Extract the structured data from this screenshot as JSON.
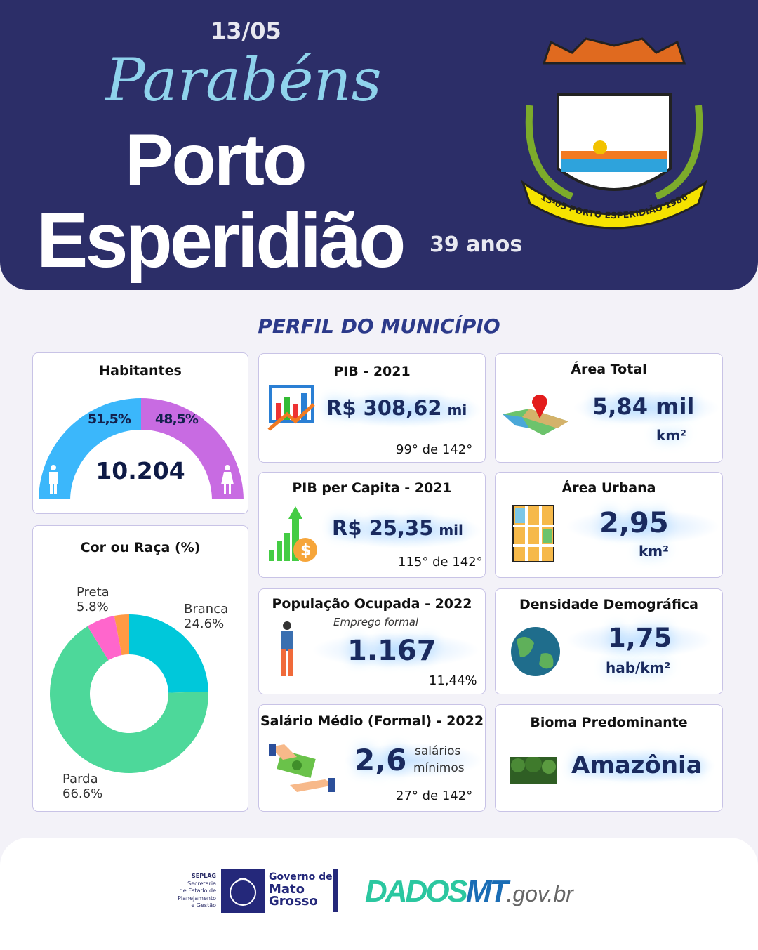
{
  "header": {
    "script": "Parabéns",
    "date": "13/05",
    "line1": "Porto",
    "line2": "Esperidião",
    "years": "39 anos",
    "crest_text": "13-05 PORTO ESPERIDIÃO 1986"
  },
  "section_title": "PERFIL DO MUNICÍPIO",
  "habitantes": {
    "title": "Habitantes",
    "total": "10.204",
    "male_pct": "51,5%",
    "female_pct": "48,5%",
    "male_value": 51.5,
    "female_value": 48.5
  },
  "chart_data": {
    "type": "pie",
    "title": "Cor ou Raça (%)",
    "categories": [
      "Branca",
      "Parda",
      "Preta",
      ""
    ],
    "values": [
      24.6,
      66.6,
      5.8,
      3.0
    ],
    "labels": [
      "Branca\n24.6%",
      "Parda\n66.6%",
      "Preta\n5.8%"
    ],
    "colors": [
      "#00c8da",
      "#4dd89a",
      "#ff66cc",
      "#ff9a45"
    ]
  },
  "raca": {
    "title": "Cor ou Raça (%)",
    "branca": "Branca",
    "branca_v": "24.6%",
    "parda": "Parda",
    "parda_v": "66.6%",
    "preta": "Preta",
    "preta_v": "5.8%"
  },
  "pib": {
    "title": "PIB - 2021",
    "value": "R$ 308,62",
    "unit": "mi",
    "rank": "99° de 142°"
  },
  "pibpc": {
    "title": "PIB per Capita - 2021",
    "value": "R$ 25,35",
    "unit": "mil",
    "rank": "115° de 142°"
  },
  "pop": {
    "title": "População  Ocupada - 2022",
    "subtitle": "Emprego formal",
    "value": "1.167",
    "pct": "11,44%"
  },
  "sal": {
    "title": "Salário Médio (Formal) - 2022",
    "value": "2,6",
    "unit1": "salários",
    "unit2": "mínimos",
    "rank": "27° de 142°"
  },
  "area": {
    "title": "Área Total",
    "value": "5,84 mil",
    "unit": "km²"
  },
  "urb": {
    "title": "Área Urbana",
    "value": "2,95",
    "unit": "km²"
  },
  "dens": {
    "title": "Densidade Demográfica",
    "value": "1,75",
    "unit": "hab/km²"
  },
  "bioma": {
    "title": "Bioma Predominante",
    "value": "Amazônia"
  },
  "footer": {
    "seplag": "SEPLAG",
    "seplag_desc": [
      "Secretaria",
      "de Estado de",
      "Planejamento",
      "e Gestão"
    ],
    "gov1": "Governo de",
    "gov2": "Mato",
    "gov3": "Grosso",
    "dados": "DADOS",
    "mt": "MT",
    ".gov": ".gov.br"
  }
}
